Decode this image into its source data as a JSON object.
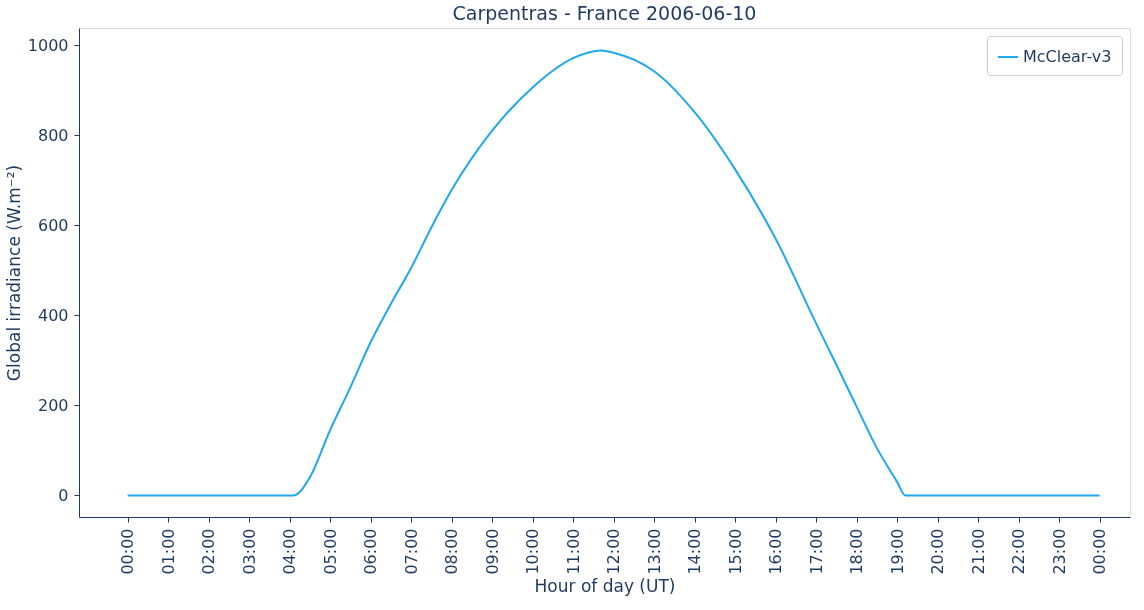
{
  "chart_data": {
    "type": "line",
    "title": "Carpentras - France 2006-06-10",
    "xlabel": "Hour of day (UT)",
    "ylabel": "Global irradiance (W.m⁻²)",
    "xlim": [
      -1.2,
      24.75
    ],
    "ylim": [
      -48,
      1038
    ],
    "xticks": [
      {
        "value": 0,
        "label": "00:00"
      },
      {
        "value": 1,
        "label": "01:00"
      },
      {
        "value": 2,
        "label": "02:00"
      },
      {
        "value": 3,
        "label": "03:00"
      },
      {
        "value": 4,
        "label": "04:00"
      },
      {
        "value": 5,
        "label": "05:00"
      },
      {
        "value": 6,
        "label": "06:00"
      },
      {
        "value": 7,
        "label": "07:00"
      },
      {
        "value": 8,
        "label": "08:00"
      },
      {
        "value": 9,
        "label": "09:00"
      },
      {
        "value": 10,
        "label": "10:00"
      },
      {
        "value": 11,
        "label": "11:00"
      },
      {
        "value": 12,
        "label": "12:00"
      },
      {
        "value": 13,
        "label": "13:00"
      },
      {
        "value": 14,
        "label": "14:00"
      },
      {
        "value": 15,
        "label": "15:00"
      },
      {
        "value": 16,
        "label": "16:00"
      },
      {
        "value": 17,
        "label": "17:00"
      },
      {
        "value": 18,
        "label": "18:00"
      },
      {
        "value": 19,
        "label": "19:00"
      },
      {
        "value": 20,
        "label": "20:00"
      },
      {
        "value": 21,
        "label": "21:00"
      },
      {
        "value": 22,
        "label": "22:00"
      },
      {
        "value": 23,
        "label": "23:00"
      },
      {
        "value": 24,
        "label": "00:00"
      }
    ],
    "yticks": [
      0,
      200,
      400,
      600,
      800,
      1000
    ],
    "x": [
      0,
      4.1,
      4.5,
      5,
      5.5,
      6,
      6.5,
      7,
      7.5,
      8,
      9,
      10,
      11,
      11.7,
      12,
      13,
      14,
      15,
      16,
      17,
      17.5,
      18,
      18.5,
      19,
      19.2,
      24
    ],
    "series": [
      {
        "name": "McClear-v3",
        "color": "#1ea8f0",
        "values": [
          0,
          0,
          40,
          145,
          240,
          340,
          425,
          505,
          595,
          678,
          810,
          906,
          971,
          988,
          983,
          942,
          851,
          724,
          570,
          382,
          290,
          197,
          105,
          30,
          0,
          0
        ]
      }
    ],
    "grid": false,
    "legend": "top right",
    "marker": "none",
    "line_style": "solid"
  }
}
